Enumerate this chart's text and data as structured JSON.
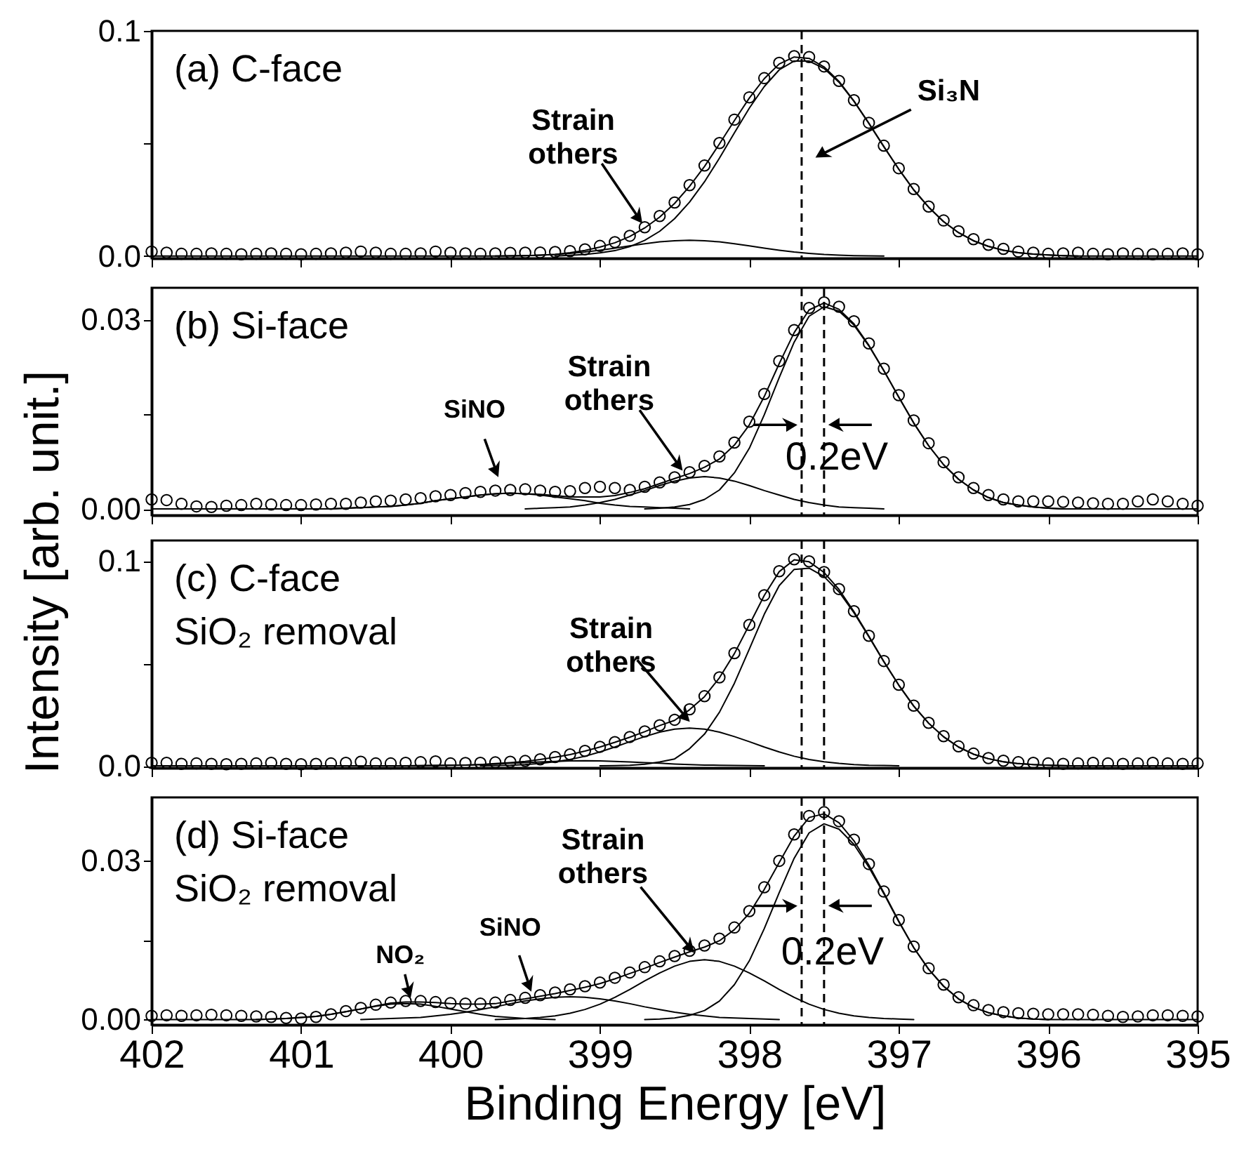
{
  "chart_data": [
    {
      "type": "line",
      "xlim": [
        402,
        395
      ],
      "xticks": [
        402,
        401,
        400,
        399,
        398,
        397,
        396,
        395
      ],
      "ylim": [
        -0.001,
        0.1
      ],
      "yticks": [
        {
          "value": 0,
          "label": "0.0"
        },
        {
          "value": 0.05,
          "label": null
        },
        {
          "value": 0.1,
          "label": "0.1"
        }
      ],
      "tick_labels": "y",
      "x": [
        402,
        401.9,
        401.8,
        401.7,
        401.6,
        401.5,
        401.4,
        401.3,
        401.2,
        401.1,
        401,
        400.9,
        400.8,
        400.7,
        400.6,
        400.5,
        400.4,
        400.3,
        400.2,
        400.1,
        400,
        399.9,
        399.8,
        399.7,
        399.6,
        399.5,
        399.4,
        399.3,
        399.2,
        399.1,
        399,
        398.9,
        398.8,
        398.7,
        398.6,
        398.5,
        398.4,
        398.3,
        398.2,
        398.1,
        398,
        397.9,
        397.8,
        397.7,
        397.6,
        397.5,
        397.4,
        397.3,
        397.2,
        397.1,
        397,
        396.9,
        396.8,
        396.7,
        396.6,
        396.5,
        396.4,
        396.3,
        396.2,
        396.1,
        396,
        395.9,
        395.8,
        395.7,
        395.6,
        395.5,
        395.4,
        395.3,
        395.2,
        395.1,
        395
      ],
      "series": [
        {
          "type": "scatter",
          "marker": "circle",
          "color": "#000000",
          "values": [
            0.002,
            0.0015,
            0.001,
            0.001,
            0.0012,
            0.001,
            0.0008,
            0.001,
            0.0012,
            0.001,
            0.0008,
            0.001,
            0.0012,
            0.0015,
            0.002,
            0.0015,
            0.001,
            0.001,
            0.0012,
            0.002,
            0.0015,
            0.0012,
            0.001,
            0.0012,
            0.0014,
            0.0015,
            0.0016,
            0.0018,
            0.0022,
            0.003,
            0.0045,
            0.0062,
            0.009,
            0.0128,
            0.0178,
            0.0238,
            0.0315,
            0.0402,
            0.0502,
            0.0606,
            0.0705,
            0.079,
            0.0858,
            0.0888,
            0.0884,
            0.0842,
            0.0778,
            0.0692,
            0.0592,
            0.049,
            0.039,
            0.0298,
            0.022,
            0.0158,
            0.011,
            0.0075,
            0.005,
            0.0032,
            0.002,
            0.0015,
            0.001,
            0.0012,
            0.0015,
            0.001,
            0.0008,
            0.0012,
            0.001,
            0.0008,
            0.001,
            0.0012,
            0.0008
          ]
        },
        {
          "type": "line",
          "color": "#000000",
          "values": [
            0,
            0,
            0,
            0,
            0,
            0,
            0,
            0,
            0,
            0,
            0,
            0,
            0,
            0,
            0,
            0,
            0,
            0,
            0,
            0,
            0,
            0,
            0,
            0,
            0.0001,
            0.0002,
            0.0004,
            0.0007,
            0.0015,
            0.0025,
            0.004,
            0.0059,
            0.0087,
            0.0125,
            0.0173,
            0.0234,
            0.031,
            0.0398,
            0.0498,
            0.0602,
            0.0702,
            0.0788,
            0.0853,
            0.0884,
            0.0878,
            0.084,
            0.0776,
            0.0689,
            0.059,
            0.0486,
            0.0386,
            0.0294,
            0.0217,
            0.0153,
            0.0104,
            0.0068,
            0.0043,
            0.0026,
            0.0015,
            0.0009,
            0.0005,
            0.0002,
            0,
            0,
            0,
            0,
            0,
            0,
            0,
            0,
            0
          ]
        },
        {
          "type": "line",
          "color": "#000000",
          "values": [
            null,
            null,
            null,
            null,
            null,
            null,
            null,
            null,
            null,
            null,
            null,
            null,
            null,
            null,
            null,
            null,
            null,
            null,
            null,
            null,
            null,
            null,
            null,
            null,
            null,
            null,
            null,
            0,
            0.0003,
            0.0007,
            0.0014,
            0.0024,
            0.0042,
            0.007,
            0.011,
            0.0166,
            0.024,
            0.033,
            0.0435,
            0.0547,
            0.0657,
            0.0753,
            0.0827,
            0.0866,
            0.0866,
            0.0833,
            0.0772,
            0.0687,
            0.0589,
            0.0486,
            0.0386,
            0.0294,
            0.0217,
            0.0153,
            0.0104,
            0.0068,
            0.0043,
            0.0026,
            0.0015,
            0.0009,
            0.0005,
            0.0002,
            0,
            null,
            null,
            null,
            null,
            null,
            null,
            null,
            null
          ]
        },
        {
          "type": "line",
          "color": "#000000",
          "values": [
            null,
            null,
            null,
            null,
            null,
            null,
            null,
            null,
            null,
            null,
            null,
            null,
            null,
            null,
            null,
            null,
            null,
            null,
            null,
            null,
            null,
            null,
            null,
            0,
            0.0001,
            0.0002,
            0.0004,
            0.0007,
            0.0012,
            0.0018,
            0.0026,
            0.0035,
            0.0045,
            0.0055,
            0.0063,
            0.0068,
            0.007,
            0.0068,
            0.0063,
            0.0055,
            0.0045,
            0.0035,
            0.0026,
            0.0018,
            0.0012,
            0.0007,
            0.0004,
            0.0002,
            0.0001,
            0,
            null,
            null,
            null,
            null,
            null,
            null,
            null,
            null,
            null,
            null,
            null,
            null,
            null,
            null,
            null,
            null,
            null,
            null,
            null,
            null,
            null
          ]
        }
      ],
      "ref_lines": [
        {
          "axis": "x",
          "value": 397.65,
          "color": "#000000",
          "line_style": "dashed"
        }
      ],
      "annotations": [
        "(a) C-face",
        {
          "text": "Strain\nothers",
          "x": 398.7,
          "y": 0.013
        },
        "Si₃N"
      ]
    },
    {
      "type": "line",
      "xlim": [
        402,
        395
      ],
      "xticks": [
        402,
        401,
        400,
        399,
        398,
        397,
        396,
        395
      ],
      "ylim": [
        -0.001,
        0.035
      ],
      "yticks": [
        {
          "value": 0,
          "label": "0.00"
        },
        {
          "value": 0.015,
          "label": null
        },
        {
          "value": 0.03,
          "label": "0.03"
        }
      ],
      "tick_labels": "y",
      "ylabel": "Intensity [arb. unit.]",
      "x": [
        402,
        401.9,
        401.8,
        401.7,
        401.6,
        401.5,
        401.4,
        401.3,
        401.2,
        401.1,
        401,
        400.9,
        400.8,
        400.7,
        400.6,
        400.5,
        400.4,
        400.3,
        400.2,
        400.1,
        400,
        399.9,
        399.8,
        399.7,
        399.6,
        399.5,
        399.4,
        399.3,
        399.2,
        399.1,
        399,
        398.9,
        398.8,
        398.7,
        398.6,
        398.5,
        398.4,
        398.3,
        398.2,
        398.1,
        398,
        397.9,
        397.8,
        397.7,
        397.6,
        397.5,
        397.4,
        397.3,
        397.2,
        397.1,
        397,
        396.9,
        396.8,
        396.7,
        396.6,
        396.5,
        396.4,
        396.3,
        396.2,
        396.1,
        396,
        395.9,
        395.8,
        395.7,
        395.6,
        395.5,
        395.4,
        395.3,
        395.2,
        395.1,
        395
      ],
      "series": [
        {
          "type": "scatter",
          "marker": "circle",
          "color": "#000000",
          "values": [
            0.0015,
            0.0014,
            0.0008,
            0.0004,
            0.0003,
            0.0005,
            0.0006,
            0.0008,
            0.0007,
            0.0006,
            0.0006,
            0.0007,
            0.0008,
            0.0008,
            0.001,
            0.0012,
            0.0013,
            0.0015,
            0.0017,
            0.002,
            0.0022,
            0.0025,
            0.0027,
            0.0029,
            0.003,
            0.0031,
            0.0029,
            0.0027,
            0.0028,
            0.0033,
            0.0035,
            0.0033,
            0.003,
            0.0035,
            0.0042,
            0.005,
            0.0058,
            0.0068,
            0.0083,
            0.0105,
            0.0138,
            0.0182,
            0.0234,
            0.0283,
            0.0318,
            0.0327,
            0.032,
            0.0297,
            0.0262,
            0.0222,
            0.018,
            0.014,
            0.0104,
            0.0074,
            0.005,
            0.0033,
            0.0022,
            0.0015,
            0.0012,
            0.0012,
            0.0012,
            0.0011,
            0.001,
            0.0009,
            0.0008,
            0.0008,
            0.0012,
            0.0015,
            0.0012,
            0.0008,
            0.0005
          ]
        },
        {
          "type": "line",
          "color": "#000000",
          "values": [
            0,
            0,
            0,
            0,
            0,
            0,
            0,
            0,
            0,
            0,
            0,
            0,
            0,
            0.0001,
            0.0002,
            0.0003,
            0.0004,
            0.0006,
            0.0009,
            0.0013,
            0.0016,
            0.0019,
            0.0022,
            0.0024,
            0.0025,
            0.0024,
            0.0023,
            0.0021,
            0.0019,
            0.0019,
            0.0019,
            0.0021,
            0.0026,
            0.0032,
            0.004,
            0.0048,
            0.0056,
            0.0066,
            0.0079,
            0.0101,
            0.0133,
            0.0178,
            0.023,
            0.0279,
            0.0315,
            0.0326,
            0.0316,
            0.0293,
            0.0259,
            0.0219,
            0.0177,
            0.0136,
            0.01,
            0.007,
            0.0047,
            0.003,
            0.0018,
            0.001,
            0.0006,
            0.0003,
            0.0001,
            0,
            0,
            0,
            0,
            0,
            0,
            0,
            0,
            0,
            0
          ]
        },
        {
          "type": "line",
          "color": "#000000",
          "values": [
            null,
            null,
            null,
            null,
            null,
            null,
            null,
            null,
            null,
            null,
            null,
            null,
            null,
            null,
            null,
            null,
            null,
            null,
            null,
            null,
            null,
            null,
            null,
            null,
            null,
            null,
            null,
            null,
            null,
            null,
            null,
            null,
            null,
            0,
            0.0001,
            0.0003,
            0.0007,
            0.0015,
            0.003,
            0.0057,
            0.0096,
            0.0149,
            0.0208,
            0.0264,
            0.0305,
            0.032,
            0.0313,
            0.0291,
            0.0258,
            0.0219,
            0.0177,
            0.0136,
            0.01,
            0.007,
            0.0047,
            0.003,
            0.0018,
            0.001,
            0.0006,
            0.0003,
            0.0001,
            0,
            null,
            null,
            null,
            null,
            null,
            null,
            null,
            null,
            null
          ]
        },
        {
          "type": "line",
          "color": "#000000",
          "values": [
            null,
            null,
            null,
            null,
            null,
            null,
            null,
            null,
            null,
            null,
            null,
            null,
            null,
            null,
            null,
            null,
            null,
            null,
            null,
            null,
            null,
            null,
            null,
            null,
            null,
            0,
            0.0001,
            0.0002,
            0.0003,
            0.0006,
            0.001,
            0.0015,
            0.0022,
            0.0029,
            0.0037,
            0.0044,
            0.0049,
            0.0051,
            0.0049,
            0.0044,
            0.0037,
            0.0029,
            0.0022,
            0.0015,
            0.001,
            0.0006,
            0.0003,
            0.0002,
            0.0001,
            0,
            null,
            null,
            null,
            null,
            null,
            null,
            null,
            null,
            null,
            null,
            null,
            null,
            null,
            null,
            null,
            null,
            null,
            null,
            null,
            null,
            null
          ]
        },
        {
          "type": "line",
          "color": "#000000",
          "values": [
            null,
            null,
            null,
            null,
            null,
            null,
            null,
            null,
            null,
            null,
            null,
            null,
            0,
            0.0001,
            0.0002,
            0.0003,
            0.0004,
            0.0006,
            0.0009,
            0.0013,
            0.0016,
            0.0019,
            0.0022,
            0.0024,
            0.0025,
            0.0024,
            0.0022,
            0.0019,
            0.0016,
            0.0013,
            0.0009,
            0.0006,
            0.0004,
            0.0003,
            0.0002,
            0.0001,
            0,
            null,
            null,
            null,
            null,
            null,
            null,
            null,
            null,
            null,
            null,
            null,
            null,
            null,
            null,
            null,
            null,
            null,
            null,
            null,
            null,
            null,
            null,
            null,
            null,
            null,
            null,
            null,
            null,
            null,
            null,
            null,
            null,
            null,
            null
          ]
        }
      ],
      "ref_lines": [
        {
          "axis": "x",
          "value": 397.65,
          "color": "#000000",
          "line_style": "dashed"
        },
        {
          "axis": "x",
          "value": 397.5,
          "color": "#000000",
          "line_style": "dashed"
        }
      ],
      "annotations": [
        "(b) Si-face",
        {
          "text": "SiNO",
          "x": 399.67,
          "y": 0.0044
        },
        {
          "text": "Strain\nothers",
          "x": 398.43,
          "y": 0.0055
        },
        {
          "text": "0.2eV",
          "x": 397.65,
          "y": 0.0133
        }
      ]
    },
    {
      "type": "line",
      "xlim": [
        402,
        395
      ],
      "xticks": [
        402,
        401,
        400,
        399,
        398,
        397,
        396,
        395
      ],
      "ylim": [
        -0.001,
        0.11
      ],
      "yticks": [
        {
          "value": 0,
          "label": "0.0"
        },
        {
          "value": 0.05,
          "label": null
        },
        {
          "value": 0.1,
          "label": "0.1"
        }
      ],
      "tick_labels": "y",
      "x": [
        402,
        401.9,
        401.8,
        401.7,
        401.6,
        401.5,
        401.4,
        401.3,
        401.2,
        401.1,
        401,
        400.9,
        400.8,
        400.7,
        400.6,
        400.5,
        400.4,
        400.3,
        400.2,
        400.1,
        400,
        399.9,
        399.8,
        399.7,
        399.6,
        399.5,
        399.4,
        399.3,
        399.2,
        399.1,
        399,
        398.9,
        398.8,
        398.7,
        398.6,
        398.5,
        398.4,
        398.3,
        398.2,
        398.1,
        398,
        397.9,
        397.8,
        397.7,
        397.6,
        397.5,
        397.4,
        397.3,
        397.2,
        397.1,
        397,
        396.9,
        396.8,
        396.7,
        396.6,
        396.5,
        396.4,
        396.3,
        396.2,
        396.1,
        396,
        395.9,
        395.8,
        395.7,
        395.6,
        395.5,
        395.4,
        395.3,
        395.2,
        395.1,
        395
      ],
      "series": [
        {
          "type": "scatter",
          "marker": "circle",
          "color": "#000000",
          "values": [
            0.0015,
            0.0015,
            0.001,
            0.0012,
            0.001,
            0.0008,
            0.001,
            0.0012,
            0.0015,
            0.001,
            0.0008,
            0.001,
            0.0012,
            0.0015,
            0.002,
            0.0012,
            0.0012,
            0.0015,
            0.0018,
            0.0022,
            0.0012,
            0.0014,
            0.0015,
            0.0017,
            0.002,
            0.0024,
            0.0032,
            0.0043,
            0.0056,
            0.0073,
            0.0093,
            0.0116,
            0.0141,
            0.0168,
            0.0198,
            0.0225,
            0.0276,
            0.034,
            0.0432,
            0.055,
            0.0688,
            0.0833,
            0.095,
            0.1008,
            0.0998,
            0.0946,
            0.0863,
            0.0755,
            0.0635,
            0.0512,
            0.0396,
            0.0294,
            0.021,
            0.0145,
            0.0095,
            0.006,
            0.0038,
            0.0025,
            0.0018,
            0.0015,
            0.0012,
            0.001,
            0.0012,
            0.0015,
            0.0012,
            0.001,
            0.0012,
            0.0015,
            0.0012,
            0.001,
            0.0012
          ]
        },
        {
          "type": "line",
          "color": "#000000",
          "values": [
            0,
            0,
            0,
            0,
            0,
            0,
            0,
            0,
            0,
            0,
            0,
            0,
            0,
            0,
            0,
            0,
            0,
            0,
            0.0001,
            0.0002,
            0.0003,
            0.0004,
            0.0006,
            0.0011,
            0.0016,
            0.0022,
            0.0031,
            0.0042,
            0.0055,
            0.0072,
            0.0092,
            0.0115,
            0.014,
            0.0167,
            0.0197,
            0.0222,
            0.0274,
            0.0338,
            0.043,
            0.0548,
            0.0689,
            0.0832,
            0.0948,
            0.1006,
            0.0996,
            0.0944,
            0.0861,
            0.0753,
            0.0633,
            0.051,
            0.0394,
            0.0292,
            0.0208,
            0.0142,
            0.0092,
            0.0057,
            0.0035,
            0.002,
            0.0011,
            0.0006,
            0.0003,
            0.0001,
            0,
            0,
            0,
            0,
            0,
            0,
            0,
            0,
            0
          ]
        },
        {
          "type": "line",
          "color": "#000000",
          "values": [
            null,
            null,
            null,
            null,
            null,
            null,
            null,
            null,
            null,
            null,
            null,
            null,
            null,
            null,
            null,
            null,
            null,
            null,
            null,
            null,
            null,
            null,
            null,
            null,
            null,
            null,
            null,
            null,
            null,
            null,
            0,
            0.0001,
            0.0003,
            0.0008,
            0.0019,
            0.0034,
            0.0084,
            0.0155,
            0.0262,
            0.0403,
            0.057,
            0.074,
            0.088,
            0.0959,
            0.0965,
            0.0924,
            0.0849,
            0.0747,
            0.063,
            0.0508,
            0.0394,
            0.0292,
            0.0208,
            0.0142,
            0.0092,
            0.0057,
            0.0035,
            0.002,
            0.0011,
            0.0006,
            0.0003,
            0.0001,
            0,
            null,
            null,
            null,
            null,
            null,
            null,
            null,
            null
          ]
        },
        {
          "type": "line",
          "color": "#000000",
          "values": [
            null,
            null,
            null,
            null,
            null,
            null,
            null,
            null,
            null,
            null,
            null,
            null,
            null,
            null,
            null,
            null,
            null,
            null,
            null,
            null,
            null,
            null,
            0,
            0.0002,
            0.0003,
            0.0006,
            0.0012,
            0.002,
            0.0031,
            0.0047,
            0.0068,
            0.0092,
            0.0118,
            0.0143,
            0.0165,
            0.0179,
            0.0184,
            0.0179,
            0.0165,
            0.0143,
            0.0118,
            0.0092,
            0.0068,
            0.0047,
            0.0031,
            0.002,
            0.0012,
            0.0006,
            0.0003,
            0.0002,
            0,
            null,
            null,
            null,
            null,
            null,
            null,
            null,
            null,
            null,
            null,
            null,
            null,
            null,
            null,
            null,
            null,
            null,
            null,
            null,
            null
          ]
        },
        {
          "type": "line",
          "color": "#000000",
          "values": [
            null,
            null,
            null,
            null,
            null,
            null,
            null,
            null,
            null,
            null,
            null,
            null,
            null,
            null,
            null,
            null,
            null,
            0,
            0.0001,
            0.0002,
            0.0003,
            0.0004,
            0.0006,
            0.0009,
            0.0013,
            0.0016,
            0.0019,
            0.0022,
            0.0024,
            0.0025,
            0.0024,
            0.0022,
            0.0019,
            0.0016,
            0.0013,
            0.0009,
            0.0006,
            0.0004,
            0.0003,
            0.0002,
            0.0001,
            0,
            null,
            null,
            null,
            null,
            null,
            null,
            null,
            null,
            null,
            null,
            null,
            null,
            null,
            null,
            null,
            null,
            null,
            null,
            null,
            null,
            null,
            null,
            null,
            null,
            null,
            null,
            null,
            null,
            null
          ]
        }
      ],
      "ref_lines": [
        {
          "axis": "x",
          "value": 397.65,
          "color": "#000000",
          "line_style": "dashed"
        },
        {
          "axis": "x",
          "value": 397.5,
          "color": "#000000",
          "line_style": "dashed"
        }
      ],
      "annotations": [
        "(c) C-face",
        "SiO₂ removal",
        {
          "text": "Strain\nothers",
          "x": 398.38,
          "y": 0.02
        }
      ]
    },
    {
      "type": "line",
      "xlim": [
        402,
        395
      ],
      "xticks": [
        402,
        401,
        400,
        399,
        398,
        397,
        396,
        395
      ],
      "ylim": [
        -0.001,
        0.042
      ],
      "yticks": [
        {
          "value": 0,
          "label": "0.00"
        },
        {
          "value": 0.015,
          "label": null
        },
        {
          "value": 0.03,
          "label": "0.03"
        }
      ],
      "xlabel": "Binding Energy [eV]",
      "x": [
        402,
        401.9,
        401.8,
        401.7,
        401.6,
        401.5,
        401.4,
        401.3,
        401.2,
        401.1,
        401,
        400.9,
        400.8,
        400.7,
        400.6,
        400.5,
        400.4,
        400.3,
        400.2,
        400.1,
        400,
        399.9,
        399.8,
        399.7,
        399.6,
        399.5,
        399.4,
        399.3,
        399.2,
        399.1,
        399,
        398.9,
        398.8,
        398.7,
        398.6,
        398.5,
        398.4,
        398.3,
        398.2,
        398.1,
        398,
        397.9,
        397.8,
        397.7,
        397.6,
        397.5,
        397.4,
        397.3,
        397.2,
        397.1,
        397,
        396.9,
        396.8,
        396.7,
        396.6,
        396.5,
        396.4,
        396.3,
        396.2,
        396.1,
        396,
        395.9,
        395.8,
        395.7,
        395.6,
        395.5,
        395.4,
        395.3,
        395.2,
        395.1,
        395
      ],
      "series": [
        {
          "type": "scatter",
          "marker": "circle",
          "color": "#000000",
          "values": [
            0.0007,
            0.0008,
            0.0007,
            0.0008,
            0.0009,
            0.0008,
            0.0007,
            0.0006,
            0.0005,
            0.0003,
            0.0002,
            0.0005,
            0.001,
            0.0016,
            0.0022,
            0.0028,
            0.0032,
            0.0035,
            0.0035,
            0.0033,
            0.0031,
            0.003,
            0.003,
            0.0032,
            0.0037,
            0.0041,
            0.0046,
            0.0051,
            0.0057,
            0.0063,
            0.007,
            0.0079,
            0.0089,
            0.0099,
            0.011,
            0.012,
            0.013,
            0.014,
            0.0153,
            0.0174,
            0.0205,
            0.025,
            0.03,
            0.035,
            0.0385,
            0.0392,
            0.0375,
            0.034,
            0.0294,
            0.0242,
            0.0188,
            0.0138,
            0.0097,
            0.0066,
            0.0042,
            0.0027,
            0.0018,
            0.0014,
            0.0012,
            0.0011,
            0.001,
            0.001,
            0.001,
            0.0009,
            0.0007,
            0.0005,
            0.0006,
            0.0008,
            0.0008,
            0.0007,
            0.0006
          ]
        },
        {
          "type": "line",
          "color": "#000000",
          "values": [
            0,
            0,
            0,
            0,
            0,
            0,
            0,
            0,
            0.0001,
            0.0002,
            0.0004,
            0.0006,
            0.001,
            0.0015,
            0.002,
            0.0026,
            0.0031,
            0.0033,
            0.0033,
            0.0032,
            0.003,
            0.0029,
            0.0029,
            0.003,
            0.0035,
            0.0039,
            0.0044,
            0.0049,
            0.0055,
            0.0061,
            0.0068,
            0.0077,
            0.0087,
            0.0097,
            0.0108,
            0.0118,
            0.0128,
            0.0137,
            0.0149,
            0.017,
            0.0201,
            0.0246,
            0.0297,
            0.0347,
            0.0382,
            0.0389,
            0.0372,
            0.0338,
            0.0292,
            0.024,
            0.0186,
            0.0136,
            0.0095,
            0.0063,
            0.0039,
            0.0023,
            0.0013,
            0.0007,
            0.0003,
            0.0001,
            0,
            0,
            0,
            0,
            0,
            0,
            0,
            0,
            0,
            0,
            0
          ]
        },
        {
          "type": "line",
          "color": "#000000",
          "values": [
            null,
            null,
            null,
            null,
            null,
            null,
            null,
            null,
            null,
            null,
            null,
            null,
            null,
            null,
            null,
            null,
            null,
            null,
            null,
            null,
            null,
            null,
            null,
            null,
            null,
            null,
            null,
            null,
            null,
            null,
            null,
            null,
            null,
            0,
            0.0001,
            0.0003,
            0.0008,
            0.0017,
            0.0035,
            0.0066,
            0.0111,
            0.0172,
            0.024,
            0.0305,
            0.0353,
            0.037,
            0.036,
            0.0331,
            0.0288,
            0.0238,
            0.0185,
            0.0136,
            0.0095,
            0.0063,
            0.0039,
            0.0023,
            0.0013,
            0.0007,
            0.0003,
            0.0001,
            0,
            null,
            null,
            null,
            null,
            null,
            null,
            null,
            null,
            null,
            null
          ]
        },
        {
          "type": "line",
          "color": "#000000",
          "values": [
            null,
            null,
            null,
            null,
            null,
            null,
            null,
            null,
            null,
            null,
            null,
            null,
            null,
            null,
            null,
            null,
            null,
            null,
            null,
            null,
            null,
            null,
            null,
            0,
            0.0001,
            0.0002,
            0.0004,
            0.0007,
            0.0012,
            0.0019,
            0.0029,
            0.0042,
            0.0057,
            0.0073,
            0.0088,
            0.0101,
            0.011,
            0.0113,
            0.011,
            0.0101,
            0.0088,
            0.0073,
            0.0057,
            0.0042,
            0.0029,
            0.0019,
            0.0012,
            0.0007,
            0.0004,
            0.0002,
            0.0001,
            0,
            null,
            null,
            null,
            null,
            null,
            null,
            null,
            null,
            null,
            null,
            null,
            null,
            null,
            null,
            null,
            null,
            null,
            null,
            null
          ]
        },
        {
          "type": "line",
          "color": "#000000",
          "values": [
            null,
            null,
            null,
            null,
            null,
            null,
            null,
            null,
            null,
            null,
            null,
            null,
            null,
            null,
            0,
            0.0001,
            0.0002,
            0.0003,
            0.0004,
            0.0007,
            0.001,
            0.0014,
            0.0019,
            0.0024,
            0.003,
            0.0035,
            0.0039,
            0.0042,
            0.0043,
            0.0042,
            0.0039,
            0.0035,
            0.003,
            0.0024,
            0.0019,
            0.0014,
            0.001,
            0.0007,
            0.0004,
            0.0003,
            0.0002,
            0.0001,
            0,
            null,
            null,
            null,
            null,
            null,
            null,
            null,
            null,
            null,
            null,
            null,
            null,
            null,
            null,
            null,
            null,
            null,
            null,
            null,
            null,
            null,
            null,
            null,
            null,
            null,
            null,
            null,
            null
          ]
        },
        {
          "type": "line",
          "color": "#000000",
          "values": [
            null,
            null,
            null,
            null,
            null,
            null,
            null,
            0,
            0.0001,
            0.0002,
            0.0004,
            0.0006,
            0.001,
            0.0015,
            0.002,
            0.0025,
            0.0029,
            0.003,
            0.0029,
            0.0025,
            0.002,
            0.0015,
            0.001,
            0.0006,
            0.0004,
            0.0002,
            0.0001,
            0,
            null,
            null,
            null,
            null,
            null,
            null,
            null,
            null,
            null,
            null,
            null,
            null,
            null,
            null,
            null,
            null,
            null,
            null,
            null,
            null,
            null,
            null,
            null,
            null,
            null,
            null,
            null,
            null,
            null,
            null,
            null,
            null,
            null,
            null,
            null,
            null,
            null,
            null,
            null,
            null,
            null,
            null,
            null
          ]
        }
      ],
      "ref_lines": [
        {
          "axis": "x",
          "value": 397.65,
          "color": "#000000",
          "line_style": "dashed"
        },
        {
          "axis": "x",
          "value": 397.5,
          "color": "#000000",
          "line_style": "dashed"
        }
      ],
      "annotations": [
        "(d) Si-face",
        "SiO₂ removal",
        {
          "text": "NO₂",
          "x": 400.26,
          "y": 0.0033
        },
        {
          "text": "SiNO",
          "x": 399.45,
          "y": 0.0045
        },
        {
          "text": "Strain\nothers",
          "x": 398.35,
          "y": 0.012
        },
        {
          "text": "0.2eV",
          "x": 397.65,
          "y": 0.0215
        }
      ]
    }
  ]
}
